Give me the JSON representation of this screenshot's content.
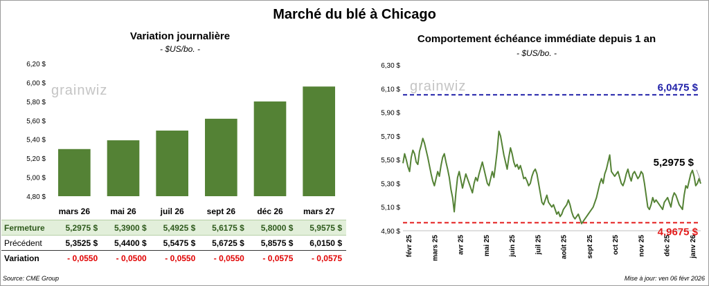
{
  "header": {
    "title": "Marché du blé à Chicago"
  },
  "footer": {
    "source": "Source: CME Group",
    "updated": "Mise à jour: ven 06 févr 2026"
  },
  "watermark": "grainwiz",
  "colors": {
    "bar": "#548235",
    "line": "#548235",
    "high": "#1f1fa8",
    "low": "#e31a1a",
    "ferm_bg": "#e2efda",
    "neg": "#e00000"
  },
  "table": {
    "labels": {
      "fermeture": "Fermeture",
      "precedent": "Précédent",
      "variation": "Variation"
    },
    "columns": [
      {
        "fermeture": "5,2975 $",
        "precedent": "5,3525 $",
        "variation": "- 0,0550"
      },
      {
        "fermeture": "5,3900 $",
        "precedent": "5,4400 $",
        "variation": "- 0,0500"
      },
      {
        "fermeture": "5,4925 $",
        "precedent": "5,5475 $",
        "variation": "- 0,0550"
      },
      {
        "fermeture": "5,6175 $",
        "precedent": "5,6725 $",
        "variation": "- 0,0550"
      },
      {
        "fermeture": "5,8000 $",
        "precedent": "5,8575 $",
        "variation": "- 0,0575"
      },
      {
        "fermeture": "5,9575 $",
        "precedent": "6,0150 $",
        "variation": "- 0,0575"
      }
    ]
  },
  "chart_data": [
    {
      "type": "bar",
      "title": "Variation journalière",
      "subtitle": "- $US/bo. -",
      "categories": [
        "mars 26",
        "mai 26",
        "juil 26",
        "sept 26",
        "déc 26",
        "mars 27"
      ],
      "values": [
        5.2975,
        5.39,
        5.4925,
        5.6175,
        5.8,
        5.9575
      ],
      "ylim": [
        4.8,
        6.2
      ],
      "yticks": [
        4.8,
        5.0,
        5.2,
        5.4,
        5.6,
        5.8,
        6.0,
        6.2
      ],
      "ytick_labels": [
        "4,80 $",
        "5,00 $",
        "5,20 $",
        "5,40 $",
        "5,60 $",
        "5,80 $",
        "6,00 $",
        "6,20 $"
      ],
      "grid": false
    },
    {
      "type": "line",
      "title": "Comportement échéance immédiate depuis 1 an",
      "subtitle": "- $US/bo. -",
      "ylim": [
        4.9,
        6.3
      ],
      "yticks": [
        4.9,
        5.1,
        5.3,
        5.5,
        5.7,
        5.9,
        6.1,
        6.3
      ],
      "ytick_labels": [
        "4,90 $",
        "5,10 $",
        "5,30 $",
        "5,50 $",
        "5,70 $",
        "5,90 $",
        "6,10 $",
        "6,30 $"
      ],
      "x_labels": [
        "févr 25",
        "mars 25",
        "avr 25",
        "mai 25",
        "juin 25",
        "juil 25",
        "août 25",
        "sept 25",
        "oct 25",
        "nov 25",
        "déc 25",
        "janv 26"
      ],
      "series": [
        {
          "values": [
            5.47,
            5.55,
            5.5,
            5.44,
            5.4,
            5.52,
            5.58,
            5.55,
            5.48,
            5.46,
            5.57,
            5.62,
            5.68,
            5.64,
            5.58,
            5.52,
            5.45,
            5.38,
            5.32,
            5.28,
            5.34,
            5.4,
            5.36,
            5.45,
            5.52,
            5.55,
            5.48,
            5.42,
            5.35,
            5.25,
            5.18,
            5.06,
            5.22,
            5.35,
            5.4,
            5.33,
            5.26,
            5.32,
            5.38,
            5.34,
            5.3,
            5.26,
            5.22,
            5.3,
            5.35,
            5.32,
            5.38,
            5.43,
            5.48,
            5.42,
            5.36,
            5.3,
            5.28,
            5.34,
            5.4,
            5.35,
            5.46,
            5.58,
            5.74,
            5.7,
            5.62,
            5.54,
            5.48,
            5.42,
            5.52,
            5.6,
            5.55,
            5.48,
            5.44,
            5.46,
            5.42,
            5.45,
            5.4,
            5.34,
            5.35,
            5.32,
            5.28,
            5.3,
            5.36,
            5.4,
            5.42,
            5.38,
            5.3,
            5.22,
            5.14,
            5.12,
            5.16,
            5.2,
            5.14,
            5.12,
            5.1,
            5.12,
            5.08,
            5.04,
            5.06,
            5.02,
            5.04,
            5.08,
            5.1,
            5.12,
            5.16,
            5.12,
            5.06,
            5.02,
            5.0,
            5.02,
            5.04,
            5.0,
            4.96,
            4.98,
            5.0,
            5.02,
            5.04,
            5.06,
            5.08,
            5.1,
            5.14,
            5.18,
            5.24,
            5.3,
            5.34,
            5.3,
            5.38,
            5.42,
            5.48,
            5.54,
            5.4,
            5.38,
            5.36,
            5.38,
            5.4,
            5.35,
            5.3,
            5.28,
            5.32,
            5.38,
            5.42,
            5.36,
            5.32,
            5.38,
            5.4,
            5.37,
            5.34,
            5.36,
            5.4,
            5.38,
            5.3,
            5.2,
            5.1,
            5.08,
            5.12,
            5.18,
            5.14,
            5.16,
            5.14,
            5.12,
            5.1,
            5.08,
            5.14,
            5.16,
            5.18,
            5.14,
            5.1,
            5.18,
            5.22,
            5.2,
            5.16,
            5.12,
            5.1,
            5.08,
            5.2,
            5.28,
            5.26,
            5.32,
            5.38,
            5.41,
            5.36,
            5.28,
            5.3,
            5.34,
            5.2975
          ],
          "color": "#548235"
        }
      ],
      "reference_lines": [
        {
          "value": 6.0475,
          "label": "6,0475 $",
          "color": "#1f1fa8",
          "style": "dashed"
        },
        {
          "value": 4.9675,
          "label": "4,9675 $",
          "color": "#e31a1a",
          "style": "dashed"
        }
      ],
      "last_label": "5,2975 $",
      "grid": false
    }
  ]
}
